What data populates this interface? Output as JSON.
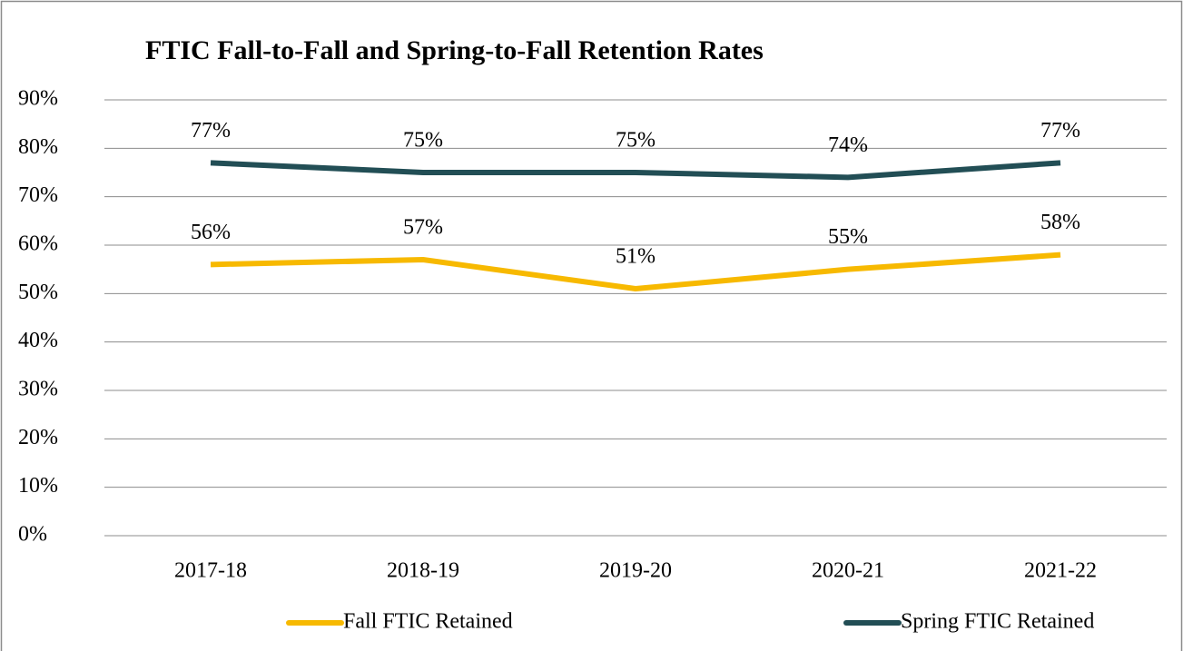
{
  "chart_data": {
    "type": "line",
    "title": "FTIC Fall-to-Fall and Spring-to-Fall Retention Rates",
    "categories": [
      "2017-18",
      "2018-19",
      "2019-20",
      "2020-21",
      "2021-22"
    ],
    "series": [
      {
        "name": "Fall FTIC Retained",
        "color": "#f7b900",
        "values": [
          56,
          57,
          51,
          55,
          58
        ],
        "value_labels": [
          "56%",
          "57%",
          "51%",
          "55%",
          "58%"
        ]
      },
      {
        "name": "Spring FTIC Retained",
        "color": "#224e55",
        "values": [
          77,
          75,
          75,
          74,
          77
        ],
        "value_labels": [
          "77%",
          "75%",
          "75%",
          "74%",
          "77%"
        ]
      }
    ],
    "ylim": [
      0,
      90
    ],
    "yticks": [
      {
        "value": 0,
        "label": "0%"
      },
      {
        "value": 10,
        "label": "10%"
      },
      {
        "value": 20,
        "label": "20%"
      },
      {
        "value": 30,
        "label": "30%"
      },
      {
        "value": 40,
        "label": "40%"
      },
      {
        "value": 50,
        "label": "50%"
      },
      {
        "value": 60,
        "label": "60%"
      },
      {
        "value": 70,
        "label": "70%"
      },
      {
        "value": 80,
        "label": "80%"
      },
      {
        "value": 90,
        "label": "90%"
      }
    ],
    "grid": true,
    "legend": "bottom"
  }
}
